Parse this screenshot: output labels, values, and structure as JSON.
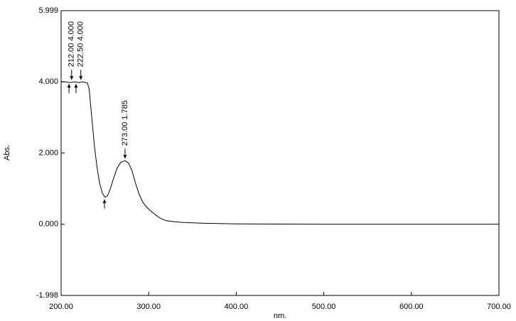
{
  "chart_data": {
    "type": "line",
    "ylabel": "Abs.",
    "xlabel": "nm.",
    "xlim": [
      200,
      700
    ],
    "ylim": [
      -1.998,
      5.999
    ],
    "xticks": [
      {
        "value": 200,
        "label": "200.00"
      },
      {
        "value": 300,
        "label": "300.00"
      },
      {
        "value": 400,
        "label": "400.00"
      },
      {
        "value": 500,
        "label": "500.00"
      },
      {
        "value": 600,
        "label": "600.00"
      },
      {
        "value": 700,
        "label": "700.00"
      }
    ],
    "yticks": [
      -1.998,
      {
        "value": 0,
        "label": "0.000"
      },
      {
        "value": 2,
        "label": "2.000"
      },
      {
        "value": 4,
        "label": "4.000"
      },
      5.999
    ],
    "series": [
      {
        "color": "#000000",
        "x": [
          200,
          205,
          210,
          215,
          220,
          225,
          230,
          232,
          235,
          238,
          241,
          244,
          247,
          250,
          253,
          256,
          260,
          264,
          268,
          273,
          277,
          281,
          285,
          289,
          293,
          297,
          302,
          308,
          314,
          320,
          330,
          340,
          360,
          380,
          400,
          450,
          500,
          600,
          700
        ],
        "values": [
          4.0,
          4.0,
          3.98,
          4.0,
          3.98,
          4.0,
          3.97,
          3.8,
          3.0,
          2.2,
          1.6,
          1.15,
          0.88,
          0.76,
          0.8,
          0.98,
          1.3,
          1.58,
          1.74,
          1.785,
          1.72,
          1.5,
          1.15,
          0.85,
          0.63,
          0.5,
          0.38,
          0.26,
          0.16,
          0.1,
          0.07,
          0.05,
          0.03,
          0.02,
          0.01,
          0.005,
          0,
          0,
          0
        ]
      }
    ],
    "peaks": {
      "x": [
        212,
        222.5,
        273
      ],
      "y": [
        4,
        4,
        1.785
      ],
      "labels": [
        "212.00  4.000",
        "222.50  4.000",
        "273.00  1.785"
      ]
    },
    "valleys": {
      "x": [
        209,
        217,
        249.5
      ],
      "y": [
        4,
        4,
        0.76
      ]
    }
  }
}
